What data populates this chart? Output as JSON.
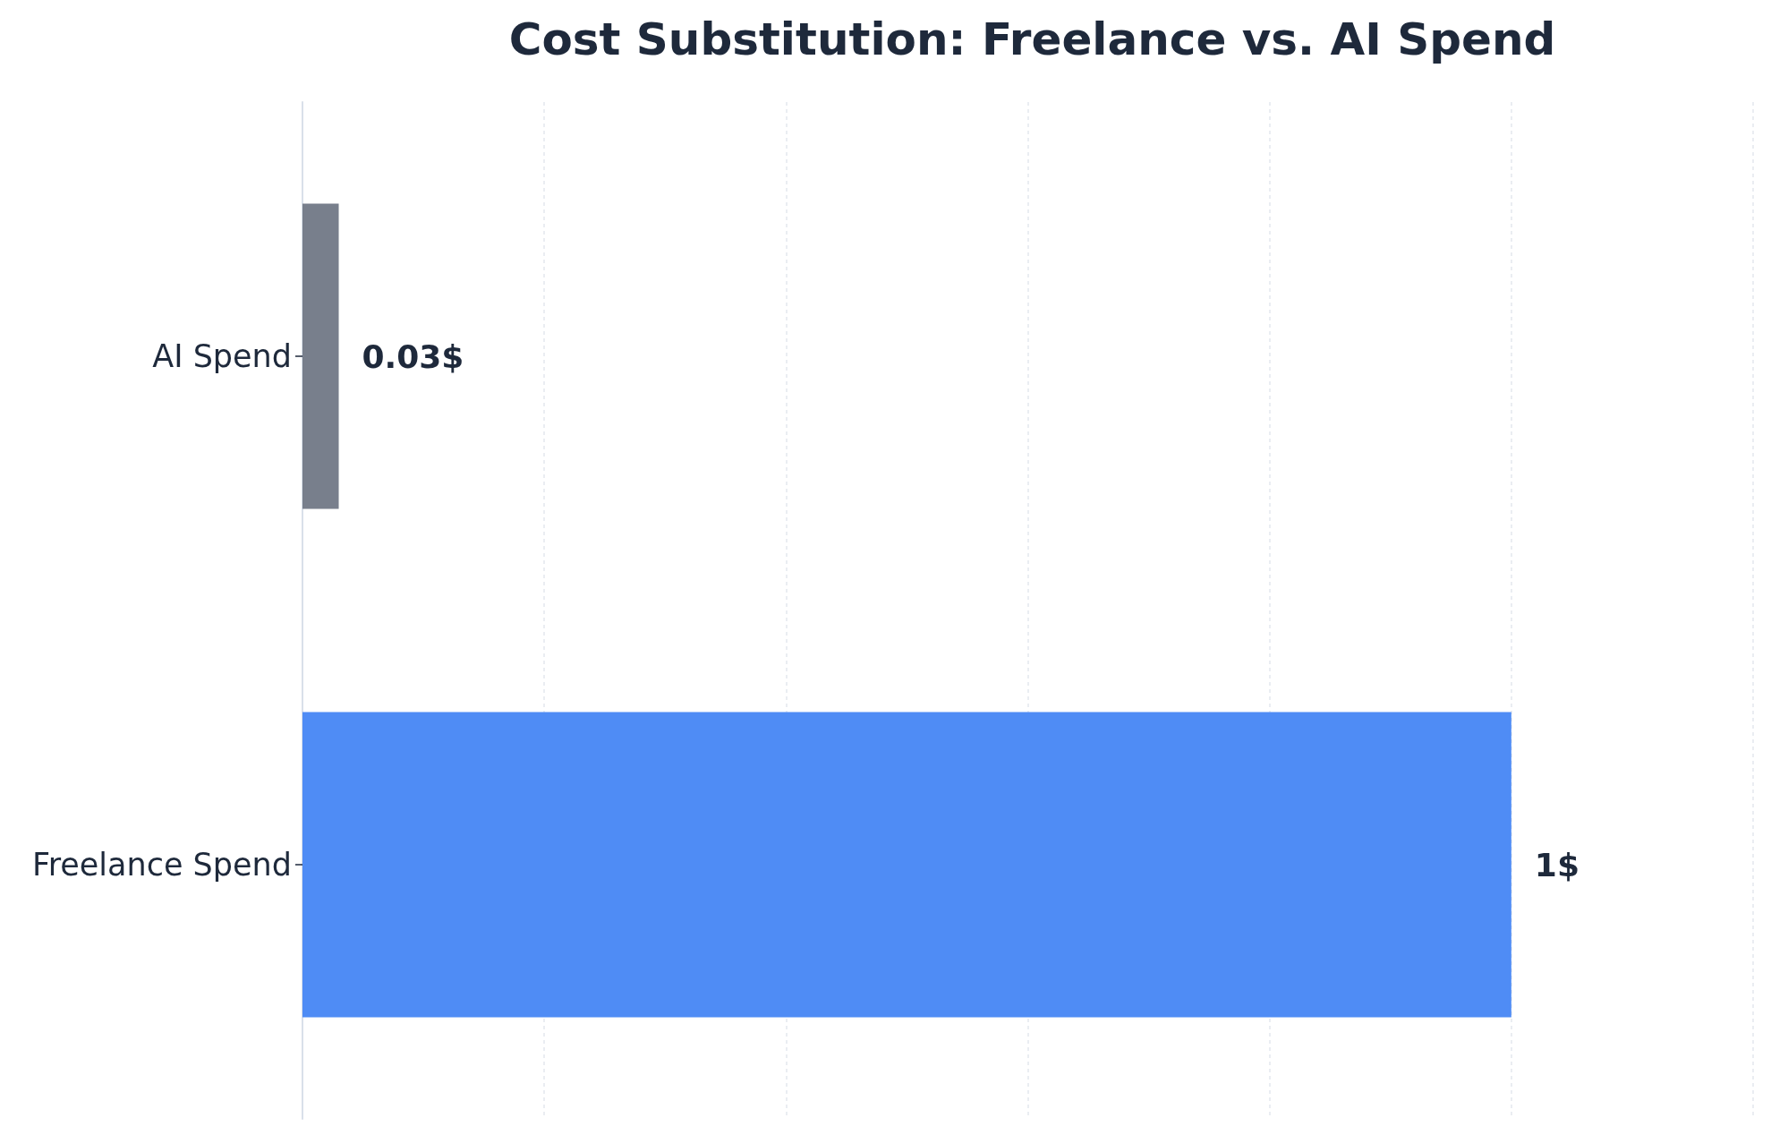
{
  "chart_data": {
    "type": "bar",
    "orientation": "horizontal",
    "title": "Cost Substitution: Freelance vs. AI Spend",
    "categories": [
      "AI Spend",
      "Freelance Spend"
    ],
    "values": [
      0.03,
      1
    ],
    "colors": [
      "#787f8c",
      "#4f8cf5"
    ],
    "value_labels": [
      "0.03$",
      "1$"
    ],
    "xlim": [
      0,
      1.2
    ],
    "xticks": [
      0,
      0.2,
      0.4,
      0.6,
      0.8,
      1,
      1.2
    ],
    "tick_labels": "y",
    "grid": "x"
  }
}
